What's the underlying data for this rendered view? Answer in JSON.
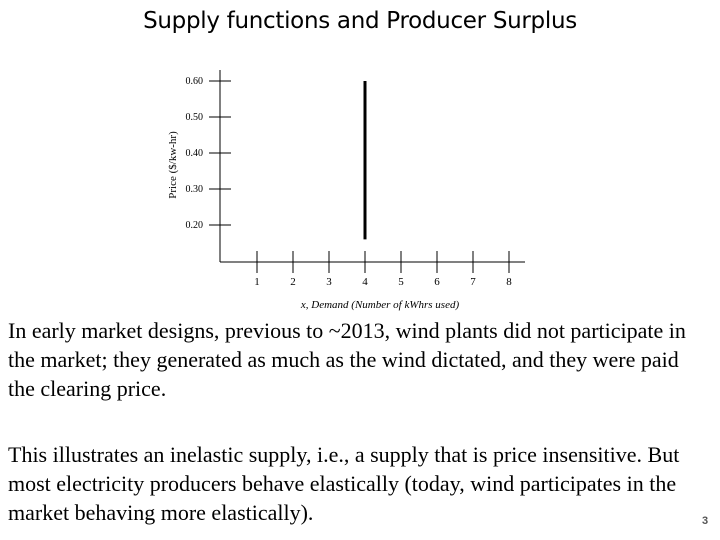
{
  "slide": {
    "title": "Supply functions and Producer Surplus",
    "paragraphs": [
      "In early market designs, previous to ~2013, wind plants did not participate in the market; they generated as much as the wind dictated, and they were paid the clearing price.",
      "This illustrates an inelastic supply, i.e., a supply that is price insensitive. But most electricity producers behave elastically (today, wind participates in the market behaving more elastically)."
    ],
    "page_number": "3"
  },
  "chart_data": {
    "type": "line",
    "title": "",
    "xlabel": "x, Demand (Number of kWhrs used)",
    "ylabel": "Price ($/kw-hr)",
    "x_ticks": [
      1,
      2,
      3,
      4,
      5,
      6,
      7,
      8
    ],
    "y_ticks": [
      "0.20",
      "0.30",
      "0.40",
      "0.50",
      "0.60"
    ],
    "xlim": [
      0.5,
      8.5
    ],
    "ylim": [
      0.15,
      0.62
    ],
    "grid": false,
    "series": [
      {
        "x": [
          4,
          4
        ],
        "y": [
          0.16,
          0.6
        ],
        "color": "#000000"
      }
    ]
  }
}
